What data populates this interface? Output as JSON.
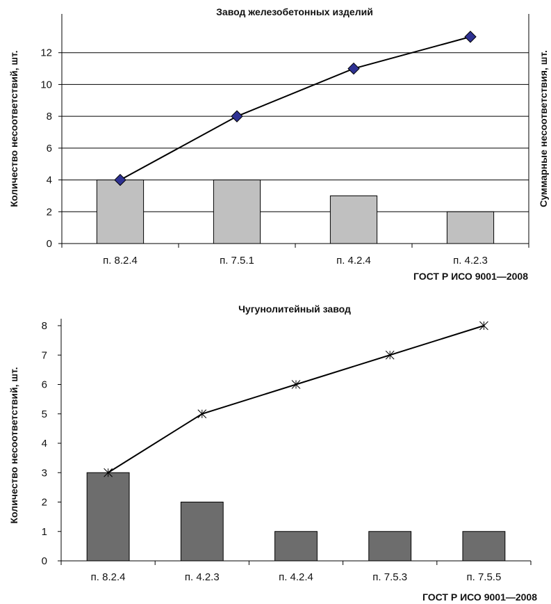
{
  "chart_data": [
    {
      "type": "bar",
      "title": "Завод железобетонных изделий",
      "xlabel": "ГОСТ Р ИСО 9001—2008",
      "ylabel": "Количество несоответствий, шт.",
      "ylabel_right": "Суммарные несоответствия, шт.",
      "categories": [
        "п. 8.2.4",
        "п. 7.5.1",
        "п. 4.2.4",
        "п. 4.2.3"
      ],
      "ylim": [
        0,
        12
      ],
      "yticks": [
        "0",
        "2",
        "4",
        "6",
        "8",
        "10",
        "12"
      ],
      "grid": true,
      "series": [
        {
          "type": "bar",
          "values": [
            4,
            4,
            3,
            2
          ],
          "color": "#c0c0c0"
        },
        {
          "type": "line",
          "values": [
            4,
            8,
            11,
            13
          ],
          "color": "#000000",
          "marker": "diamond",
          "marker_color": "#2e3192"
        }
      ]
    },
    {
      "type": "bar",
      "title": "Чугунолитейный завод",
      "xlabel": "ГОСТ Р ИСО 9001—2008",
      "ylabel": "Количество несоответствий, шт.",
      "categories": [
        "п. 8.2.4",
        "п. 4.2.3",
        "п. 4.2.4",
        "п. 7.5.3",
        "п. 7.5.5"
      ],
      "ylim": [
        0,
        8
      ],
      "yticks": [
        "0",
        "1",
        "2",
        "3",
        "4",
        "5",
        "6",
        "7",
        "8"
      ],
      "grid": false,
      "series": [
        {
          "type": "bar",
          "values": [
            3,
            2,
            1,
            1,
            1
          ],
          "color": "#6d6d6d"
        },
        {
          "type": "line",
          "values": [
            3,
            5,
            6,
            7,
            8
          ],
          "color": "#000000",
          "marker": "asterisk"
        }
      ]
    }
  ]
}
